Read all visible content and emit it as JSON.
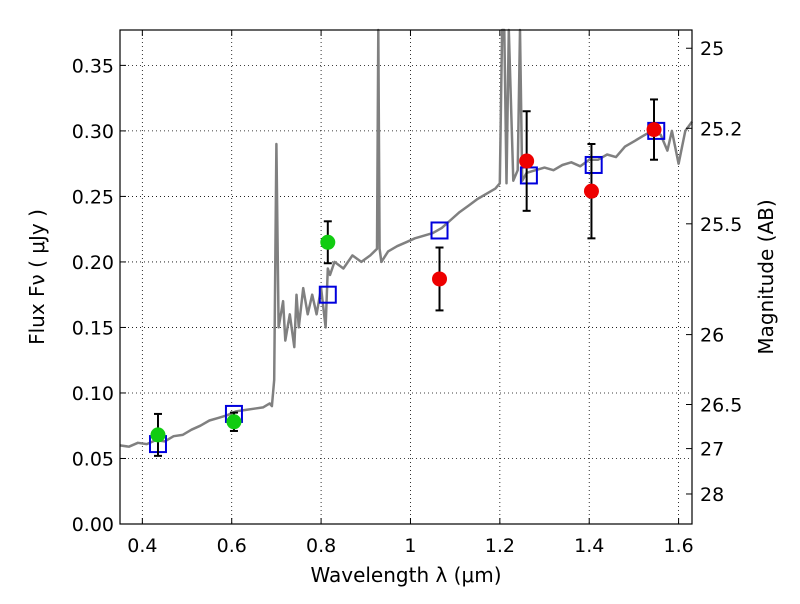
{
  "chart_data": {
    "type": "scatter",
    "xlabel": "Wavelength  λ (μm)",
    "ylabel": "Flux  Fν ( μJy )",
    "ylabel_right": "Magnitude (AB)",
    "xlim": [
      0.35,
      1.63
    ],
    "ylim": [
      0.0,
      0.377
    ],
    "grid": true,
    "xticks": [
      0.4,
      0.6,
      0.8,
      1.0,
      1.2,
      1.4,
      1.6
    ],
    "xtick_labels": [
      "0.4",
      "0.6",
      "0.8",
      "1",
      "1.2",
      "1.4",
      "1.6"
    ],
    "yticks": [
      0.0,
      0.05,
      0.1,
      0.15,
      0.2,
      0.25,
      0.3,
      0.35
    ],
    "ytick_labels": [
      "0.00",
      "0.05",
      "0.10",
      "0.15",
      "0.20",
      "0.25",
      "0.30",
      "0.35"
    ],
    "right_ticks": [
      {
        "label": "25",
        "mag": 25.0
      },
      {
        "label": "25.2",
        "mag": 25.2
      },
      {
        "label": "25.5",
        "mag": 25.5
      },
      {
        "label": "26",
        "mag": 26.0
      },
      {
        "label": "26.5",
        "mag": 26.5
      },
      {
        "label": "27",
        "mag": 27.0
      },
      {
        "label": "28",
        "mag": 28.0
      }
    ],
    "series": [
      {
        "kind": "line",
        "color": "#808080",
        "x": [
          0.35,
          0.37,
          0.39,
          0.41,
          0.43,
          0.45,
          0.47,
          0.49,
          0.51,
          0.53,
          0.55,
          0.57,
          0.59,
          0.61,
          0.63,
          0.65,
          0.67,
          0.685,
          0.69,
          0.695,
          0.7,
          0.705,
          0.715,
          0.72,
          0.73,
          0.74,
          0.745,
          0.75,
          0.76,
          0.77,
          0.78,
          0.79,
          0.8,
          0.81,
          0.815,
          0.82,
          0.83,
          0.85,
          0.87,
          0.89,
          0.91,
          0.925,
          0.928,
          0.931,
          0.935,
          0.95,
          0.97,
          0.99,
          1.01,
          1.03,
          1.05,
          1.07,
          1.09,
          1.11,
          1.13,
          1.15,
          1.17,
          1.19,
          1.2,
          1.205,
          1.21,
          1.215,
          1.22,
          1.23,
          1.24,
          1.245,
          1.25,
          1.26,
          1.28,
          1.3,
          1.32,
          1.34,
          1.36,
          1.38,
          1.4,
          1.42,
          1.44,
          1.46,
          1.48,
          1.5,
          1.52,
          1.54,
          1.56,
          1.575,
          1.585,
          1.6,
          1.615,
          1.63
        ],
        "y": [
          0.06,
          0.059,
          0.062,
          0.061,
          0.064,
          0.063,
          0.067,
          0.068,
          0.072,
          0.075,
          0.079,
          0.081,
          0.083,
          0.086,
          0.087,
          0.088,
          0.089,
          0.092,
          0.09,
          0.11,
          0.29,
          0.15,
          0.17,
          0.14,
          0.16,
          0.135,
          0.175,
          0.15,
          0.18,
          0.16,
          0.175,
          0.16,
          0.18,
          0.15,
          0.195,
          0.19,
          0.2,
          0.195,
          0.205,
          0.2,
          0.205,
          0.21,
          0.377,
          0.21,
          0.2,
          0.208,
          0.212,
          0.215,
          0.218,
          0.22,
          0.222,
          0.226,
          0.232,
          0.238,
          0.243,
          0.248,
          0.252,
          0.256,
          0.26,
          0.377,
          0.377,
          0.26,
          0.377,
          0.262,
          0.27,
          0.377,
          0.262,
          0.268,
          0.27,
          0.272,
          0.27,
          0.274,
          0.276,
          0.273,
          0.278,
          0.278,
          0.282,
          0.28,
          0.288,
          0.292,
          0.296,
          0.3,
          0.297,
          0.285,
          0.3,
          0.275,
          0.3,
          0.307
        ]
      },
      {
        "kind": "open-squares",
        "color": "#0000dd",
        "x": [
          0.435,
          0.605,
          0.815,
          1.065,
          1.265,
          1.41,
          1.55
        ],
        "y": [
          0.061,
          0.084,
          0.175,
          0.224,
          0.266,
          0.274,
          0.3
        ]
      },
      {
        "kind": "filled-circles",
        "color": "#11cc11",
        "x": [
          0.435,
          0.605,
          0.815
        ],
        "y": [
          0.068,
          0.078,
          0.215
        ],
        "err": [
          0.016,
          0.007,
          0.016
        ]
      },
      {
        "kind": "filled-circles",
        "color": "#ee0000",
        "x": [
          1.065,
          1.26,
          1.405,
          1.545
        ],
        "y": [
          0.187,
          0.277,
          0.254,
          0.301
        ],
        "err": [
          0.024,
          0.038,
          0.036,
          0.023
        ]
      }
    ]
  }
}
